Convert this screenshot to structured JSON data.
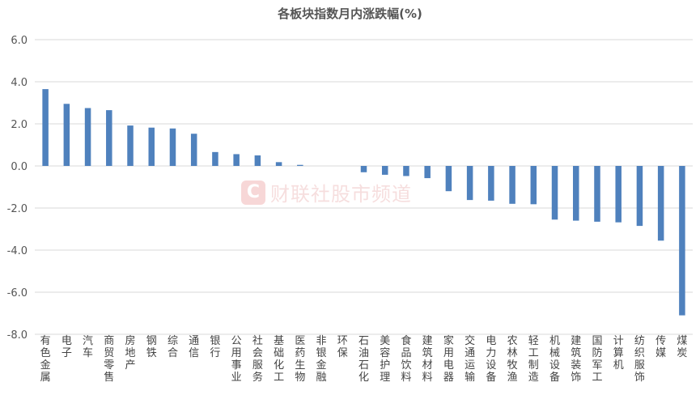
{
  "watermark": {
    "logo": "C",
    "text": "财联社股市频道"
  },
  "chart_data": {
    "type": "bar",
    "title": "各板块指数月内涨跌幅(%)",
    "ylim": [
      -8,
      6
    ],
    "yticks": [
      "6.0",
      "4.0",
      "2.0",
      "0.0",
      "-2.0",
      "-4.0",
      "-6.0",
      "-8.0"
    ],
    "grid": true,
    "legend": "none",
    "color": "#4f81bd",
    "categories": [
      "有色金属",
      "电子",
      "汽车",
      "商贸零售",
      "房地产",
      "钢铁",
      "综合",
      "通信",
      "银行",
      "公用事业",
      "社会服务",
      "基础化工",
      "医药生物",
      "非银金融",
      "环保",
      "石油石化",
      "美容护理",
      "食品饮料",
      "建筑材料",
      "家用电器",
      "交通运输",
      "电力设备",
      "农林牧渔",
      "轻工制造",
      "机械设备",
      "建筑装饰",
      "国防军工",
      "计算机",
      "纺织服饰",
      "传媒",
      "煤炭"
    ],
    "values": [
      3.65,
      2.95,
      2.75,
      2.65,
      1.92,
      1.82,
      1.78,
      1.53,
      0.66,
      0.56,
      0.5,
      0.18,
      0.05,
      0.0,
      0.0,
      -0.3,
      -0.42,
      -0.48,
      -0.58,
      -1.2,
      -1.62,
      -1.65,
      -1.8,
      -1.82,
      -2.55,
      -2.6,
      -2.65,
      -2.68,
      -2.85,
      -3.55,
      -7.1
    ]
  }
}
